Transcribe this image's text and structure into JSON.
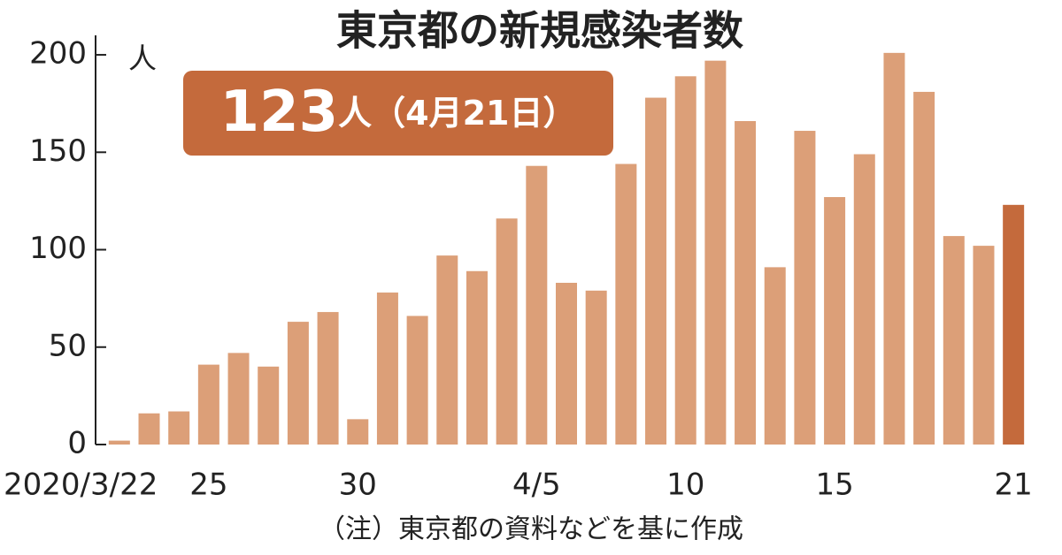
{
  "chart_data": {
    "type": "bar",
    "title": "東京都の新規感染者数",
    "y_unit": "人",
    "annotation": {
      "number": "123",
      "text": "人（4月21日）",
      "color": "#c46a3c"
    },
    "note": "（注）東京都の資料などを基に作成",
    "categories": [
      "2020/3/22",
      null,
      null,
      "25",
      null,
      null,
      null,
      null,
      "30",
      null,
      null,
      null,
      null,
      null,
      "4/5",
      null,
      null,
      null,
      null,
      "10",
      null,
      null,
      null,
      null,
      "15",
      null,
      null,
      null,
      null,
      null,
      "21"
    ],
    "values": [
      2,
      16,
      17,
      41,
      47,
      40,
      63,
      68,
      13,
      78,
      66,
      97,
      89,
      116,
      143,
      83,
      79,
      144,
      178,
      189,
      197,
      166,
      91,
      161,
      127,
      149,
      201,
      181,
      107,
      102,
      123
    ],
    "colors": [
      "#dc9f78",
      "#dc9f78",
      "#dc9f78",
      "#dc9f78",
      "#dc9f78",
      "#dc9f78",
      "#dc9f78",
      "#dc9f78",
      "#dc9f78",
      "#dc9f78",
      "#dc9f78",
      "#dc9f78",
      "#dc9f78",
      "#dc9f78",
      "#dc9f78",
      "#dc9f78",
      "#dc9f78",
      "#dc9f78",
      "#dc9f78",
      "#dc9f78",
      "#dc9f78",
      "#dc9f78",
      "#dc9f78",
      "#dc9f78",
      "#dc9f78",
      "#dc9f78",
      "#dc9f78",
      "#dc9f78",
      "#dc9f78",
      "#dc9f78",
      "#c46a3c"
    ],
    "ylim": [
      0,
      210
    ],
    "yticks": [
      0,
      50,
      100,
      150,
      200
    ]
  }
}
